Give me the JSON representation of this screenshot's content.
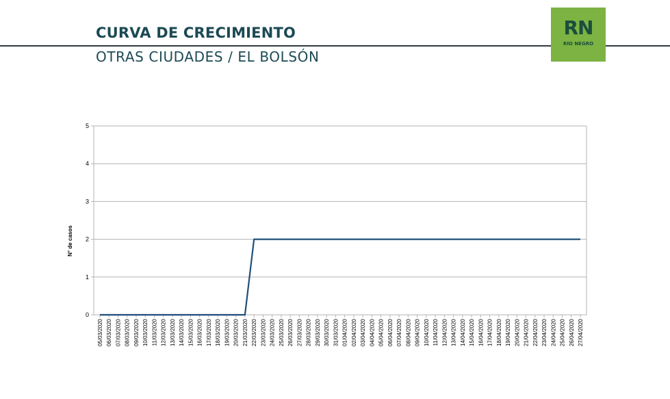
{
  "header": {
    "title": "CURVA DE CRECIMIENTO",
    "subtitle": "OTRAS CIUDADES / EL BOLSÓN"
  },
  "logo": {
    "mark": "RN",
    "text": "RIO NEGRO",
    "color": "#7cb342"
  },
  "chart_data": {
    "type": "line",
    "title": "",
    "xlabel": "",
    "ylabel": "N° de casos",
    "ylim": [
      0,
      5
    ],
    "yticks": [
      0,
      1,
      2,
      3,
      4,
      5
    ],
    "grid": true,
    "legend": "none",
    "line_color": "#1f4e79",
    "categories": [
      "05/03/2020",
      "06/03/2020",
      "07/03/2020",
      "08/03/2020",
      "09/03/2020",
      "10/03/2020",
      "11/03/2020",
      "12/03/2020",
      "13/03/2020",
      "14/03/2020",
      "15/03/2020",
      "16/03/2020",
      "17/03/2020",
      "18/03/2020",
      "19/03/2020",
      "20/03/2020",
      "21/03/2020",
      "22/03/2020",
      "23/03/2020",
      "24/03/2020",
      "25/03/2020",
      "26/03/2020",
      "27/03/2020",
      "28/03/2020",
      "29/03/2020",
      "30/03/2020",
      "31/03/2020",
      "01/04/2020",
      "02/04/2020",
      "03/04/2020",
      "04/04/2020",
      "05/04/2020",
      "06/04/2020",
      "07/04/2020",
      "08/04/2020",
      "09/04/2020",
      "10/04/2020",
      "11/04/2020",
      "12/04/2020",
      "13/04/2020",
      "14/04/2020",
      "15/04/2020",
      "16/04/2020",
      "17/04/2020",
      "18/04/2020",
      "19/04/2020",
      "20/04/2020",
      "21/04/2020",
      "22/04/2020",
      "23/04/2020",
      "24/04/2020",
      "25/04/2020",
      "26/04/2020",
      "27/04/2020"
    ],
    "series": [
      {
        "values": [
          0,
          0,
          0,
          0,
          0,
          0,
          0,
          0,
          0,
          0,
          0,
          0,
          0,
          0,
          0,
          0,
          0,
          2,
          2,
          2,
          2,
          2,
          2,
          2,
          2,
          2,
          2,
          2,
          2,
          2,
          2,
          2,
          2,
          2,
          2,
          2,
          2,
          2,
          2,
          2,
          2,
          2,
          2,
          2,
          2,
          2,
          2,
          2,
          2,
          2,
          2,
          2,
          2,
          2
        ]
      }
    ]
  }
}
